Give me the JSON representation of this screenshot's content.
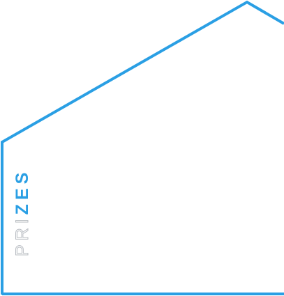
{
  "section": {
    "title_outline": "PRI",
    "title_solid": "ZES"
  },
  "colors": {
    "frame_stroke": "#2a9fe4",
    "outline_text_stroke": "#b8bcc2",
    "solid_text": "#2a9fe4",
    "background": "#ffffff"
  }
}
